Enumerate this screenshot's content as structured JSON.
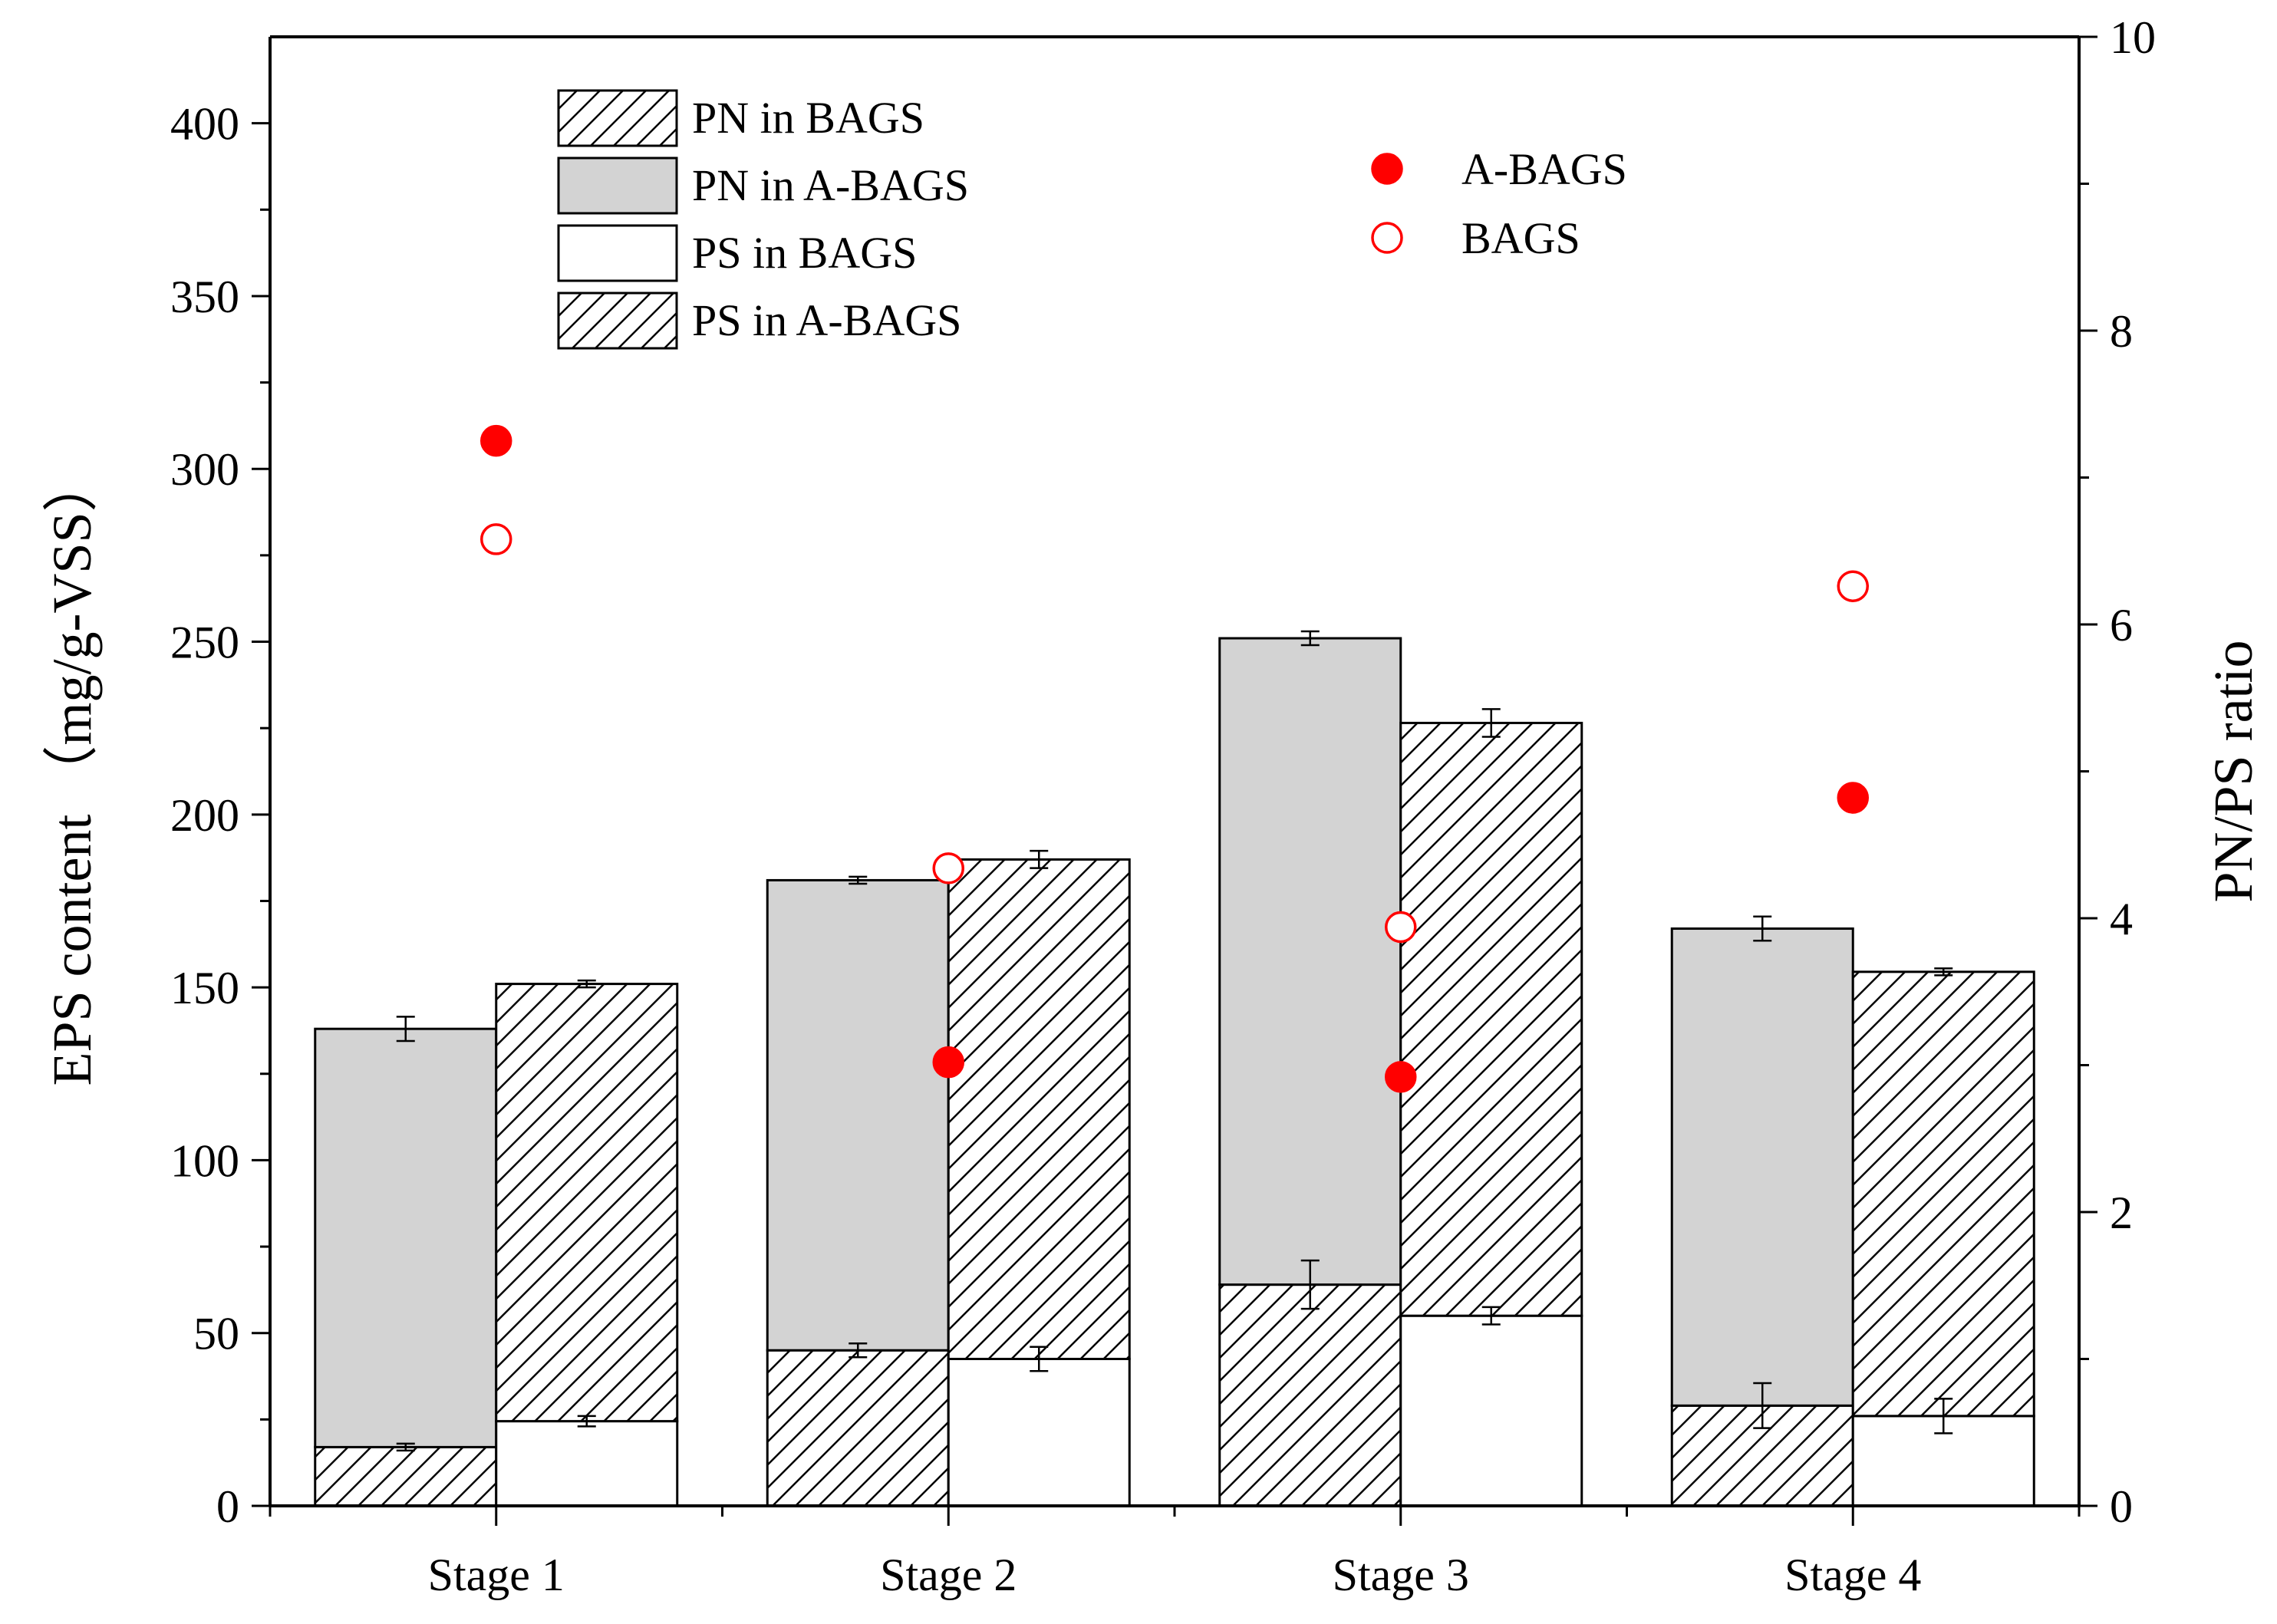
{
  "chart_data": {
    "type": "bar",
    "categories": [
      "Stage 1",
      "Stage 2",
      "Stage 3",
      "Stage 4"
    ],
    "ylabel": "EPS content （mg/g-VSS）",
    "y2label": "PN/PS ratio",
    "ylim": [
      0,
      425
    ],
    "y2lim": [
      0,
      10
    ],
    "yticks": [
      0,
      50,
      100,
      150,
      200,
      250,
      300,
      350,
      400
    ],
    "y2ticks": [
      0,
      2,
      4,
      6,
      8,
      10
    ],
    "stacked_bars": {
      "A-BAGS": {
        "PS": {
          "name": "PS in A-BAGS",
          "values": [
            17,
            45,
            64,
            29
          ],
          "errors": [
            1,
            2,
            7,
            6.5
          ]
        },
        "PN": {
          "name": "PN in A-BAGS",
          "values": [
            121,
            136,
            187,
            138
          ],
          "errors": [
            3.5,
            1,
            2,
            3.5
          ]
        }
      },
      "BAGS": {
        "PS": {
          "name": "PS in BAGS",
          "values": [
            24.5,
            42.5,
            55,
            26
          ],
          "errors": [
            1.5,
            3.5,
            2.5,
            5
          ]
        },
        "PN": {
          "name": "PN in BAGS",
          "values": [
            126.5,
            144.5,
            171.5,
            128.5
          ],
          "errors": [
            1,
            2.5,
            4,
            1
          ]
        }
      }
    },
    "ratio_series": [
      {
        "name": "A-BAGS",
        "axis": "right",
        "marker": "filled-circle",
        "values": [
          7.25,
          3.02,
          2.92,
          4.82
        ]
      },
      {
        "name": "BAGS",
        "axis": "right",
        "marker": "open-circle",
        "values": [
          6.58,
          4.34,
          3.94,
          6.26
        ]
      }
    ],
    "legend_bars": [
      "PN in BAGS",
      "PN in A-BAGS",
      "PS in BAGS",
      "PS in A-BAGS"
    ],
    "legend_points": [
      "A-BAGS",
      "BAGS"
    ],
    "legend_placement": "top",
    "grid": false,
    "colors": {
      "pn_abags_fill": "#d3d3d3",
      "marker": "#ff0000",
      "axis": "#000000",
      "bar_white": "#ffffff"
    }
  }
}
